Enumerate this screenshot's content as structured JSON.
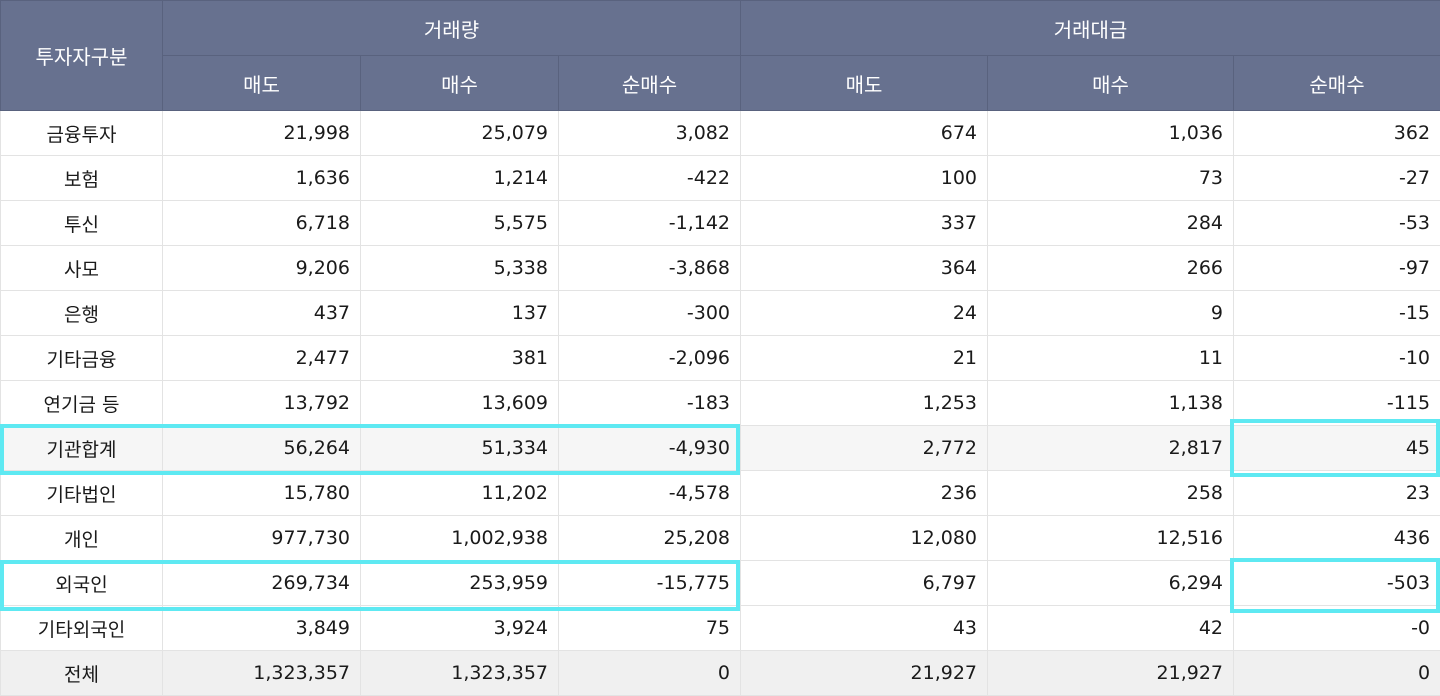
{
  "table": {
    "corner_header": "투자자구분",
    "group_headers": [
      "거래량",
      "거래대금"
    ],
    "sub_headers": [
      "매도",
      "매수",
      "순매수",
      "매도",
      "매수",
      "순매수"
    ],
    "rows": [
      {
        "label": "금융투자",
        "cells": [
          "21,998",
          "25,079",
          "3,082",
          "674",
          "1,036",
          "362"
        ]
      },
      {
        "label": "보험",
        "cells": [
          "1,636",
          "1,214",
          "-422",
          "100",
          "73",
          "-27"
        ]
      },
      {
        "label": "투신",
        "cells": [
          "6,718",
          "5,575",
          "-1,142",
          "337",
          "284",
          "-53"
        ]
      },
      {
        "label": "사모",
        "cells": [
          "9,206",
          "5,338",
          "-3,868",
          "364",
          "266",
          "-97"
        ]
      },
      {
        "label": "은행",
        "cells": [
          "437",
          "137",
          "-300",
          "24",
          "9",
          "-15"
        ]
      },
      {
        "label": "기타금융",
        "cells": [
          "2,477",
          "381",
          "-2,096",
          "21",
          "11",
          "-10"
        ]
      },
      {
        "label": "연기금 등",
        "cells": [
          "13,792",
          "13,609",
          "-183",
          "1,253",
          "1,138",
          "-115"
        ]
      },
      {
        "label": "기관합계",
        "cells": [
          "56,264",
          "51,334",
          "-4,930",
          "2,772",
          "2,817",
          "45"
        ]
      },
      {
        "label": "기타법인",
        "cells": [
          "15,780",
          "11,202",
          "-4,578",
          "236",
          "258",
          "23"
        ]
      },
      {
        "label": "개인",
        "cells": [
          "977,730",
          "1,002,938",
          "25,208",
          "12,080",
          "12,516",
          "436"
        ]
      },
      {
        "label": "외국인",
        "cells": [
          "269,734",
          "253,959",
          "-15,775",
          "6,797",
          "6,294",
          "-503"
        ]
      },
      {
        "label": "기타외국인",
        "cells": [
          "3,849",
          "3,924",
          "75",
          "43",
          "42",
          "-0"
        ]
      },
      {
        "label": "전체",
        "cells": [
          "1,323,357",
          "1,323,357",
          "0",
          "21,927",
          "21,927",
          "0"
        ]
      }
    ]
  },
  "highlight_color": "#5ee9f2"
}
